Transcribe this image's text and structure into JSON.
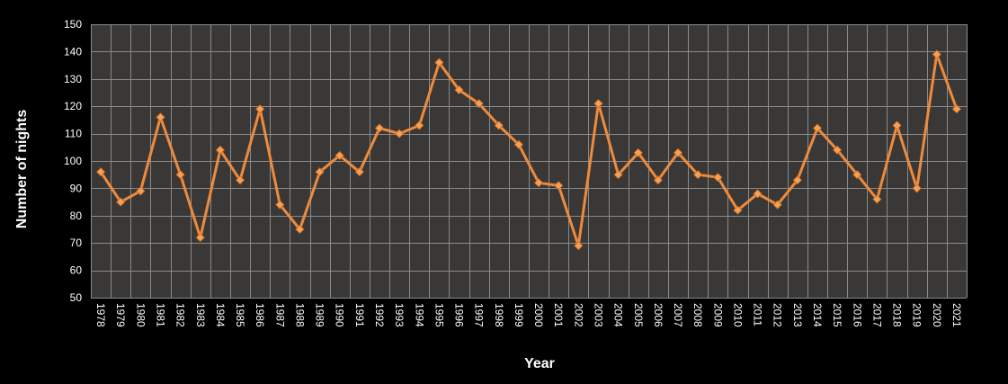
{
  "chart_data": {
    "type": "line",
    "title": "",
    "xlabel": "Year",
    "ylabel": "Number of nights",
    "ylim": [
      50,
      150
    ],
    "ytick_step": 10,
    "grid": true,
    "legend": "none",
    "categories": [
      "1978",
      "1979",
      "1980",
      "1981",
      "1982",
      "1983",
      "1984",
      "1985",
      "1986",
      "1987",
      "1988",
      "1989",
      "1990",
      "1991",
      "1992",
      "1993",
      "1994",
      "1995",
      "1996",
      "1997",
      "1998",
      "1999",
      "2000",
      "2001",
      "2002",
      "2003",
      "2004",
      "2005",
      "2006",
      "2007",
      "2008",
      "2009",
      "2010",
      "2011",
      "2012",
      "2013",
      "2014",
      "2015",
      "2016",
      "2017",
      "2018",
      "2019",
      "2020",
      "2021"
    ],
    "series": [
      {
        "name": "Number of nights",
        "values": [
          96,
          85,
          89,
          116,
          95,
          72,
          104,
          93,
          119,
          84,
          75,
          96,
          102,
          96,
          112,
          110,
          113,
          136,
          126,
          121,
          113,
          106,
          92,
          91,
          69,
          121,
          95,
          103,
          93,
          103,
          95,
          94,
          82,
          88,
          84,
          93,
          112,
          104,
          95,
          86,
          113,
          90,
          139,
          119
        ]
      }
    ],
    "colors": {
      "background": "#000000",
      "plot_area": "#3a3836",
      "grid": "#8a8a8a",
      "line": "#ee8a3c",
      "marker": "#f5a055",
      "text": "#ffffff"
    }
  }
}
